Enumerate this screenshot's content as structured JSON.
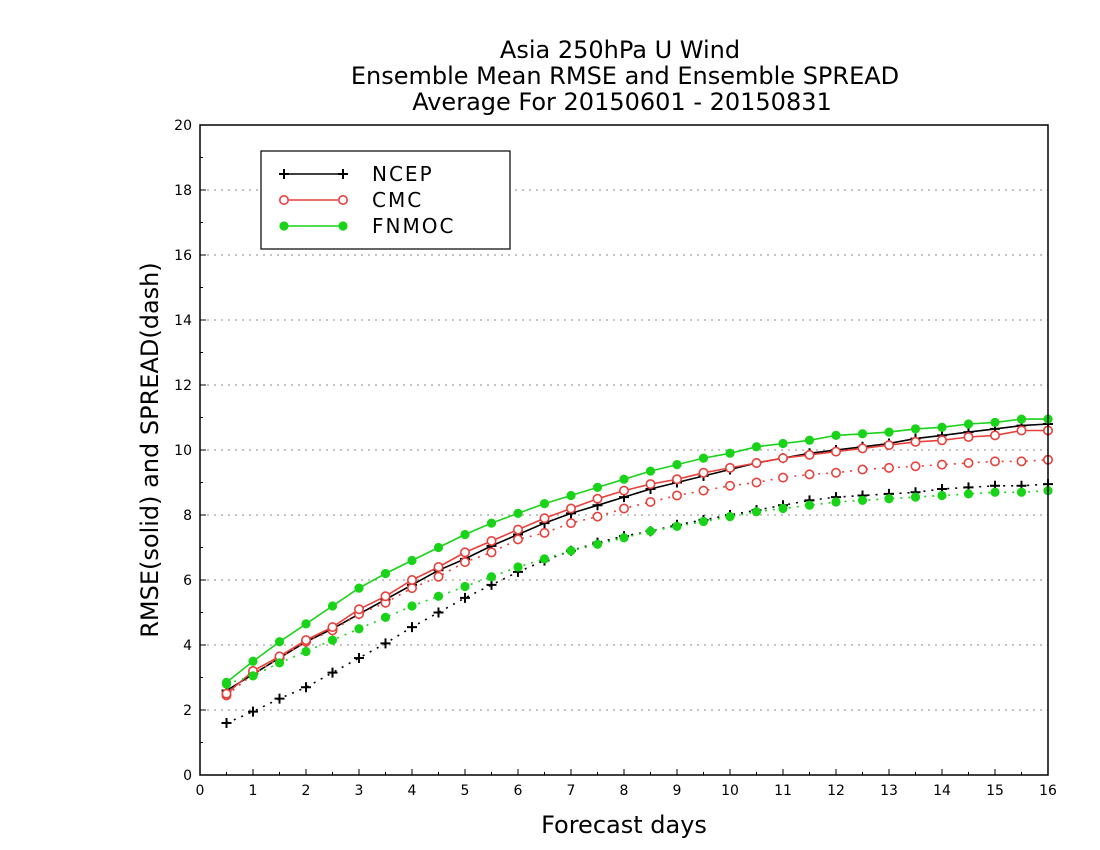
{
  "chart_data": {
    "type": "line",
    "title_lines": [
      "Asia 250hPa U Wind",
      "Ensemble Mean RMSE and Ensemble SPREAD",
      "Average For 20150601 - 20150831"
    ],
    "xlabel": "Forecast days",
    "ylabel": "RMSE(solid) and SPREAD(dash)",
    "xlim": [
      0,
      16
    ],
    "ylim": [
      0,
      20
    ],
    "xticks": [
      0,
      1,
      2,
      3,
      4,
      5,
      6,
      7,
      8,
      9,
      10,
      11,
      12,
      13,
      14,
      15,
      16
    ],
    "yticks": [
      0,
      2,
      4,
      6,
      8,
      10,
      12,
      14,
      16,
      18,
      20
    ],
    "grid": "horizontal dotted",
    "legend_position": "top-left",
    "x": [
      0.5,
      1,
      1.5,
      2,
      2.5,
      3,
      3.5,
      4,
      4.5,
      5,
      5.5,
      6,
      6.5,
      7,
      7.5,
      8,
      8.5,
      9,
      9.5,
      10,
      10.5,
      11,
      11.5,
      12,
      12.5,
      13,
      13.5,
      14,
      14.5,
      15,
      15.5,
      16
    ],
    "series": [
      {
        "name": "NCEP",
        "color": "#000000",
        "marker": "plus",
        "rmse": [
          2.6,
          3.1,
          3.6,
          4.1,
          4.5,
          4.95,
          5.4,
          5.85,
          6.3,
          6.65,
          7.05,
          7.4,
          7.75,
          8.05,
          8.3,
          8.55,
          8.8,
          9.0,
          9.2,
          9.4,
          9.6,
          9.75,
          9.9,
          10.0,
          10.1,
          10.2,
          10.35,
          10.45,
          10.55,
          10.65,
          10.75,
          10.8
        ],
        "spread": [
          1.6,
          1.95,
          2.35,
          2.7,
          3.15,
          3.6,
          4.05,
          4.55,
          5.0,
          5.45,
          5.85,
          6.25,
          6.6,
          6.9,
          7.15,
          7.35,
          7.5,
          7.7,
          7.85,
          8.0,
          8.15,
          8.3,
          8.45,
          8.55,
          8.6,
          8.65,
          8.7,
          8.8,
          8.85,
          8.9,
          8.9,
          8.95
        ]
      },
      {
        "name": "CMC",
        "color": "#e8413c",
        "marker": "open-circle",
        "rmse": [
          2.5,
          3.2,
          3.65,
          4.15,
          4.55,
          5.1,
          5.5,
          6.0,
          6.4,
          6.85,
          7.2,
          7.55,
          7.9,
          8.2,
          8.5,
          8.75,
          8.95,
          9.1,
          9.3,
          9.45,
          9.6,
          9.75,
          9.85,
          9.95,
          10.05,
          10.15,
          10.25,
          10.3,
          10.4,
          10.45,
          10.6,
          10.6
        ],
        "spread": [
          2.45,
          3.1,
          3.6,
          4.1,
          4.45,
          4.95,
          5.3,
          5.75,
          6.1,
          6.55,
          6.85,
          7.25,
          7.45,
          7.75,
          7.95,
          8.2,
          8.4,
          8.6,
          8.75,
          8.9,
          9.0,
          9.15,
          9.25,
          9.3,
          9.4,
          9.45,
          9.5,
          9.55,
          9.6,
          9.65,
          9.65,
          9.7
        ]
      },
      {
        "name": "FNMOC",
        "color": "#19d319",
        "marker": "filled-circle",
        "rmse": [
          2.85,
          3.5,
          4.1,
          4.65,
          5.2,
          5.75,
          6.2,
          6.6,
          7.0,
          7.4,
          7.75,
          8.05,
          8.35,
          8.6,
          8.85,
          9.1,
          9.35,
          9.55,
          9.75,
          9.9,
          10.1,
          10.2,
          10.3,
          10.45,
          10.5,
          10.55,
          10.65,
          10.7,
          10.8,
          10.85,
          10.95,
          10.95
        ],
        "spread": [
          2.8,
          3.05,
          3.45,
          3.8,
          4.15,
          4.5,
          4.85,
          5.2,
          5.5,
          5.8,
          6.1,
          6.4,
          6.65,
          6.9,
          7.1,
          7.3,
          7.5,
          7.65,
          7.8,
          7.95,
          8.1,
          8.2,
          8.3,
          8.4,
          8.45,
          8.5,
          8.55,
          8.6,
          8.65,
          8.7,
          8.7,
          8.75
        ]
      }
    ]
  }
}
